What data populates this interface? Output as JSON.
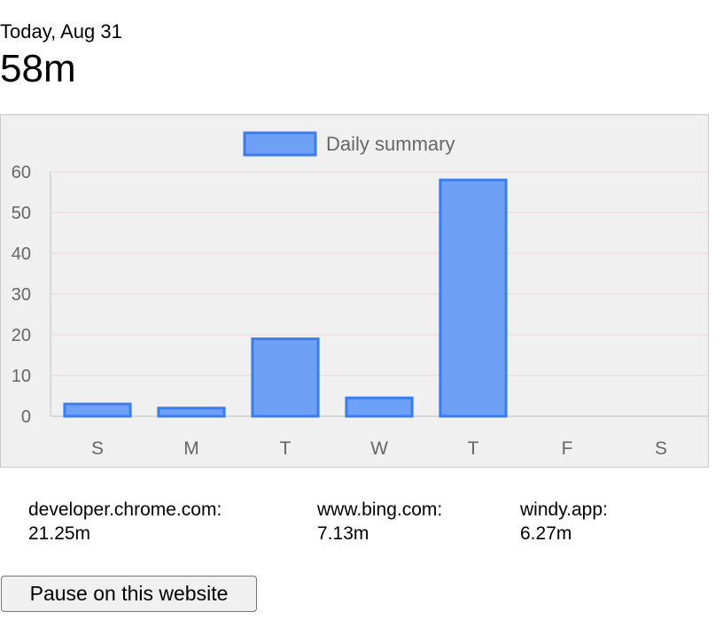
{
  "header": {
    "date": "Today, Aug 31",
    "total": "58m"
  },
  "chart_data": {
    "type": "bar",
    "categories": [
      "S",
      "M",
      "T",
      "W",
      "T",
      "F",
      "S"
    ],
    "series": [
      {
        "name": "Daily summary",
        "values": [
          3,
          2,
          19,
          4.5,
          58,
          0,
          0
        ]
      }
    ],
    "title": "",
    "xlabel": "",
    "ylabel": "",
    "ylim": [
      0,
      60
    ],
    "yticks": [
      0,
      10,
      20,
      30,
      40,
      50,
      60
    ],
    "legend": "top-center",
    "grid": true,
    "colors": {
      "bar_fill": "#6ea0f5",
      "bar_stroke": "#3b7ded",
      "grid": "#f1d3dc",
      "axis": "#c0c0c0",
      "tick_text": "#666666",
      "legend_text": "#666666"
    }
  },
  "sites": [
    {
      "domain": "developer.chrome.com:",
      "time": "21.25m"
    },
    {
      "domain": "www.bing.com:",
      "time": "7.13m"
    },
    {
      "domain": "windy.app:",
      "time": "6.27m"
    }
  ],
  "pause_button": {
    "label": "Pause on this website"
  }
}
